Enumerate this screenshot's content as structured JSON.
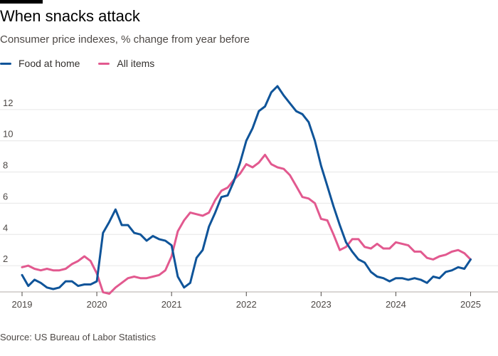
{
  "header": {
    "title": "When snacks attack",
    "subtitle": "Consumer price indexes, % change from year before"
  },
  "footer": {
    "source": "Source: US Bureau of Labor Statistics"
  },
  "colors": {
    "food": "#0f5499",
    "all": "#e2598f",
    "grid": "#e6e6e6",
    "axis": "#4d4845"
  },
  "chart_data": {
    "type": "line",
    "title": "When snacks attack",
    "subtitle": "Consumer price indexes, % change from year before",
    "xlabel": "",
    "ylabel": "",
    "x_start": "2019-01",
    "x_frequency": "monthly",
    "xlim": [
      "2019-01",
      "2025-03"
    ],
    "ylim": [
      0,
      14
    ],
    "y_ticks": [
      2,
      4,
      6,
      8,
      10,
      12
    ],
    "y_tick_labels": [
      "2",
      "4",
      "6",
      "8",
      "10",
      "12"
    ],
    "x_ticks": [
      "2019",
      "2020",
      "2021",
      "2022",
      "2023",
      "2024",
      "2025"
    ],
    "grid": true,
    "legend_position": "top-left",
    "series": [
      {
        "name": "Food at home",
        "color": "#0f5499",
        "values": [
          1.4,
          0.7,
          1.1,
          0.9,
          0.6,
          0.5,
          0.6,
          1.0,
          1.0,
          0.7,
          0.8,
          0.8,
          1.0,
          4.1,
          4.8,
          5.6,
          4.6,
          4.6,
          4.1,
          4.0,
          3.6,
          3.9,
          3.7,
          3.6,
          3.3,
          1.3,
          0.6,
          0.9,
          2.5,
          3.0,
          4.5,
          5.4,
          6.4,
          6.5,
          7.4,
          8.6,
          10.0,
          10.8,
          11.9,
          12.2,
          13.1,
          13.5,
          12.9,
          12.4,
          11.9,
          11.7,
          11.2,
          10.0,
          8.4,
          7.1,
          5.8,
          4.6,
          3.5,
          2.9,
          2.4,
          2.2,
          1.6,
          1.3,
          1.2,
          1.0,
          1.2,
          1.2,
          1.1,
          1.2,
          1.1,
          0.9,
          1.3,
          1.2,
          1.6,
          1.7,
          1.9,
          1.8,
          2.4
        ]
      },
      {
        "name": "All items",
        "color": "#e2598f",
        "values": [
          1.9,
          2.0,
          1.8,
          1.7,
          1.8,
          1.7,
          1.7,
          1.8,
          2.1,
          2.3,
          2.6,
          2.3,
          1.5,
          0.3,
          0.2,
          0.6,
          0.9,
          1.2,
          1.3,
          1.2,
          1.2,
          1.3,
          1.4,
          1.7,
          2.6,
          4.2,
          4.9,
          5.4,
          5.3,
          5.2,
          5.4,
          6.2,
          6.8,
          7.0,
          7.5,
          7.9,
          8.5,
          8.3,
          8.6,
          9.1,
          8.5,
          8.3,
          8.2,
          7.8,
          7.1,
          6.4,
          6.3,
          6.0,
          5.0,
          4.9,
          4.0,
          3.0,
          3.2,
          3.7,
          3.7,
          3.2,
          3.1,
          3.4,
          3.1,
          3.1,
          3.5,
          3.4,
          3.3,
          2.9,
          2.9,
          2.5,
          2.4,
          2.6,
          2.7,
          2.9,
          3.0,
          2.8,
          2.4
        ]
      }
    ]
  }
}
